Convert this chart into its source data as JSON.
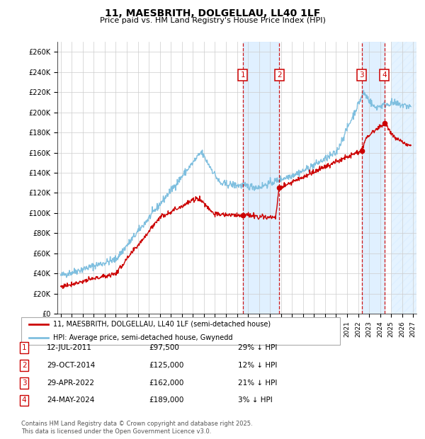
{
  "title": "11, MAESBRITH, DOLGELLAU, LL40 1LF",
  "subtitle": "Price paid vs. HM Land Registry's House Price Index (HPI)",
  "ylabel_ticks": [
    "£0",
    "£20K",
    "£40K",
    "£60K",
    "£80K",
    "£100K",
    "£120K",
    "£140K",
    "£160K",
    "£180K",
    "£200K",
    "£220K",
    "£240K",
    "£260K"
  ],
  "ytick_values": [
    0,
    20000,
    40000,
    60000,
    80000,
    100000,
    120000,
    140000,
    160000,
    180000,
    200000,
    220000,
    240000,
    260000
  ],
  "ylim": [
    0,
    270000
  ],
  "xlim_start": 1994.7,
  "xlim_end": 2027.3,
  "transactions": [
    {
      "num": 1,
      "date": "12-JUL-2011",
      "year": 2011.53,
      "price": 97500,
      "pct": "29% ↓ HPI"
    },
    {
      "num": 2,
      "date": "29-OCT-2014",
      "year": 2014.83,
      "price": 125000,
      "pct": "12% ↓ HPI"
    },
    {
      "num": 3,
      "date": "29-APR-2022",
      "year": 2022.33,
      "price": 162000,
      "pct": "21% ↓ HPI"
    },
    {
      "num": 4,
      "date": "24-MAY-2024",
      "year": 2024.4,
      "price": 189000,
      "pct": "3% ↓ HPI"
    }
  ],
  "hpi_color": "#7fbfdf",
  "price_color": "#cc0000",
  "grid_color": "#cccccc",
  "span_color": "#dbeeff",
  "legend_label_price": "11, MAESBRITH, DOLGELLAU, LL40 1LF (semi-detached house)",
  "legend_label_hpi": "HPI: Average price, semi-detached house, Gwynedd",
  "footer": "Contains HM Land Registry data © Crown copyright and database right 2025.\nThis data is licensed under the Open Government Licence v3.0.",
  "table_rows": [
    [
      "1",
      "12-JUL-2011",
      "£97,500",
      "29% ↓ HPI"
    ],
    [
      "2",
      "29-OCT-2014",
      "£125,000",
      "12% ↓ HPI"
    ],
    [
      "3",
      "29-APR-2022",
      "£162,000",
      "21% ↓ HPI"
    ],
    [
      "4",
      "24-MAY-2024",
      "£189,000",
      "3% ↓ HPI"
    ]
  ],
  "hpi_seed": 42,
  "price_seed": 77,
  "n_points": 800
}
